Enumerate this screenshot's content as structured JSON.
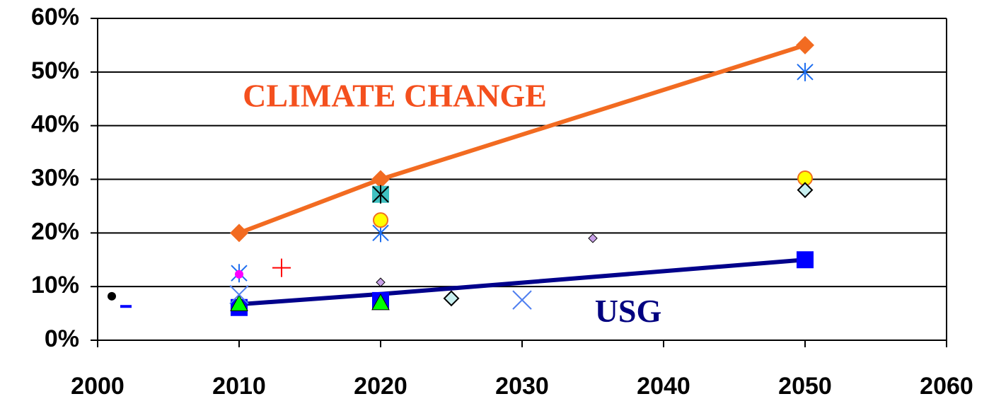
{
  "chart_data": {
    "type": "line",
    "xlim": [
      2000,
      2060
    ],
    "xticks": [
      2000,
      2010,
      2020,
      2030,
      2040,
      2050,
      2060
    ],
    "ylim": [
      0,
      60
    ],
    "yticks": [
      {
        "value": 0,
        "label": "0%"
      },
      {
        "value": 10,
        "label": "10%"
      },
      {
        "value": 20,
        "label": "20%"
      },
      {
        "value": 30,
        "label": "30%"
      },
      {
        "value": 40,
        "label": "40%"
      },
      {
        "value": 50,
        "label": "50%"
      },
      {
        "value": 60,
        "label": "60%"
      }
    ],
    "grid": true,
    "annotations": [
      {
        "text": "CLIMATE CHANGE",
        "color": "#f4501e",
        "x": 2021,
        "y": 45
      },
      {
        "text": "USG",
        "color": "#000080",
        "x": 2037.5,
        "y": 4.8
      }
    ],
    "series": [
      {
        "color": "#f26b21",
        "line": true,
        "marker": "diamond",
        "x": [
          2010,
          2020,
          2050
        ],
        "values": [
          20,
          30,
          55
        ]
      },
      {
        "color": "#00008b",
        "line": true,
        "marker": "none",
        "x": [
          2010,
          2020,
          2050
        ],
        "values": [
          6.7,
          8.6,
          15
        ]
      },
      {
        "color": "#000000",
        "line": false,
        "marker": "dot",
        "x": [
          2001
        ],
        "values": [
          8.2
        ]
      },
      {
        "color": "#0000ff",
        "line": false,
        "marker": "dash",
        "x": [
          2002
        ],
        "values": [
          6.3
        ]
      },
      {
        "color": "#0000ff",
        "line": false,
        "marker": "square",
        "x": [
          2010,
          2020,
          2050
        ],
        "values": [
          6.1,
          7.4,
          15
        ]
      },
      {
        "color": "#00ff00",
        "line": false,
        "marker": "triangle",
        "x": [
          2010,
          2020
        ],
        "values": [
          6.8,
          7.0
        ]
      },
      {
        "color": "#1e6ef0",
        "line": false,
        "marker": "asterisk",
        "x": [
          2010,
          2020,
          2050
        ],
        "values": [
          12.5,
          20,
          50
        ]
      },
      {
        "color": "#ff00ff",
        "line": false,
        "marker": "dot",
        "x": [
          2010
        ],
        "values": [
          12.3
        ]
      },
      {
        "color": "#5080f0",
        "line": false,
        "marker": "cross",
        "x": [
          2010,
          2030
        ],
        "values": [
          8.5,
          7.5
        ]
      },
      {
        "color": "#ff0000",
        "line": false,
        "marker": "plus",
        "x": [
          2013
        ],
        "values": [
          13.5
        ]
      },
      {
        "color": "#40c0c0",
        "line": false,
        "marker": "square",
        "x": [
          2020
        ],
        "values": [
          27.2
        ]
      },
      {
        "color": "#000000",
        "line": false,
        "marker": "asterisk",
        "x": [
          2020
        ],
        "values": [
          27.2
        ]
      },
      {
        "color": "#ffff00",
        "line": false,
        "marker": "circle",
        "x": [
          2020,
          2050
        ],
        "values": [
          22.4,
          30.2
        ]
      },
      {
        "color": "#c8a0e8",
        "line": false,
        "marker": "smalldiamond",
        "x": [
          2020,
          2035
        ],
        "values": [
          10.8,
          19
        ]
      },
      {
        "color": "#c8f0f0",
        "line": false,
        "marker": "outlinediamond",
        "x": [
          2025,
          2050
        ],
        "values": [
          7.8,
          28
        ]
      }
    ]
  }
}
